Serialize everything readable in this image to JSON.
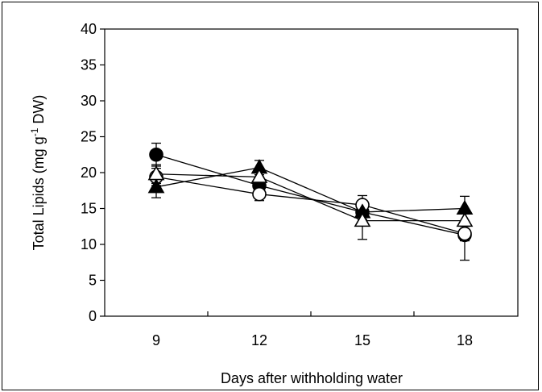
{
  "chart_data": {
    "type": "line",
    "xlabel": "Days after withholding water",
    "ylabel": "Total Lipids (mg g-1 DW)",
    "ylabel_parts": {
      "pre": "Total Lipids (mg g",
      "sup": "-1",
      "post": " DW)"
    },
    "ylim": [
      0,
      40
    ],
    "y_ticks": [
      0,
      5,
      10,
      15,
      20,
      25,
      30,
      35,
      40
    ],
    "x_categories": [
      "9",
      "12",
      "15",
      "18"
    ],
    "grid": false,
    "series": [
      {
        "marker": "filled-circle",
        "values": [
          22.5,
          18.2,
          14.5,
          11.3
        ],
        "error": [
          1.6,
          1.2,
          1.5,
          3.5
        ]
      },
      {
        "marker": "open-circle",
        "values": [
          19.4,
          17.0,
          15.5,
          11.5
        ],
        "error": [
          1.2,
          0.9,
          1.3,
          1.0
        ]
      },
      {
        "marker": "filled-triangle",
        "values": [
          18.0,
          20.7,
          14.5,
          15.0
        ],
        "error": [
          1.5,
          1.0,
          1.0,
          1.7
        ]
      },
      {
        "marker": "open-triangle",
        "values": [
          19.8,
          19.4,
          13.3,
          13.3
        ],
        "error": [
          1.3,
          1.0,
          2.6,
          1.2
        ]
      }
    ]
  }
}
